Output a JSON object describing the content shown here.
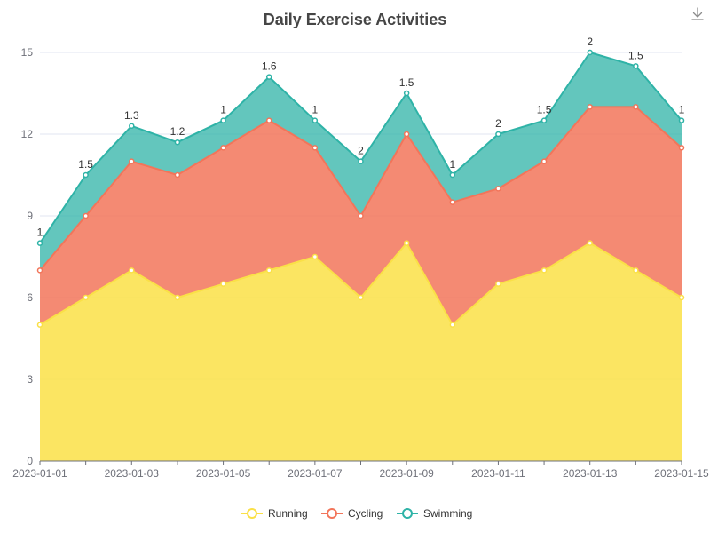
{
  "chart_data": {
    "type": "area",
    "stacked": true,
    "title": "Daily Exercise Activities",
    "x": [
      "2023-01-01",
      "2023-01-02",
      "2023-01-03",
      "2023-01-04",
      "2023-01-05",
      "2023-01-06",
      "2023-01-07",
      "2023-01-08",
      "2023-01-09",
      "2023-01-10",
      "2023-01-11",
      "2023-01-12",
      "2023-01-13",
      "2023-01-14",
      "2023-01-15"
    ],
    "x_tick_labels": [
      "2023-01-01",
      "2023-01-03",
      "2023-01-05",
      "2023-01-07",
      "2023-01-09",
      "2023-01-11",
      "2023-01-13",
      "2023-01-15"
    ],
    "ylim": [
      0,
      15
    ],
    "y_ticks": [
      0,
      3,
      6,
      9,
      12,
      15
    ],
    "grid": true,
    "legend_position": "bottom",
    "series": [
      {
        "name": "Running",
        "color": "#fae047",
        "values": [
          5,
          6,
          7,
          6,
          6.5,
          7,
          7.5,
          6,
          8,
          5,
          6.5,
          7,
          8,
          7,
          6
        ]
      },
      {
        "name": "Cycling",
        "color": "#f2755a",
        "values": [
          2,
          3,
          4,
          4.5,
          5,
          5.5,
          4,
          3,
          4,
          4.5,
          3.5,
          4,
          5,
          6,
          5.5
        ]
      },
      {
        "name": "Swimming",
        "color": "#2fb3a7",
        "values": [
          1,
          1.5,
          1.3,
          1.2,
          1,
          1.6,
          1,
          2,
          1.5,
          1,
          2,
          1.5,
          2,
          1.5,
          1
        ],
        "show_labels": true
      }
    ]
  },
  "toolbar": {
    "download_icon": "download-icon"
  }
}
